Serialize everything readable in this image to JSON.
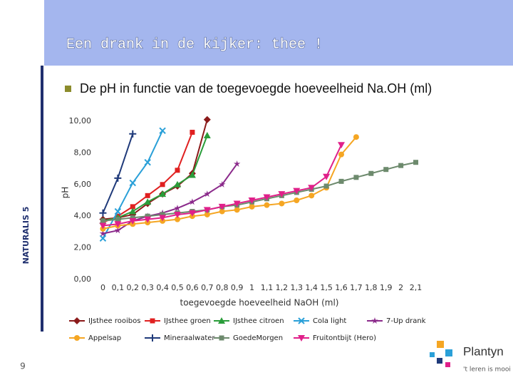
{
  "slide": {
    "title": "Een drank in de kijker: thee !",
    "bullet": "De pH in functie van de toegevoegde hoeveelheid Na.OH (ml)",
    "side_label": "NATURALIS 5",
    "page_number": "9",
    "logo": {
      "name": "Plantyn",
      "tagline": "'t leren is mooi"
    }
  },
  "chart_data": {
    "type": "line",
    "x_label": "toegevoegde hoeveelheid NaOH (ml)",
    "y_label": "pH",
    "x": [
      0,
      0.1,
      0.2,
      0.3,
      0.4,
      0.5,
      0.6,
      0.7,
      0.8,
      0.9,
      1.0,
      1.1,
      1.2,
      1.3,
      1.4,
      1.5,
      1.6,
      1.7,
      1.8,
      1.9,
      2.0,
      2.1
    ],
    "xlim": [
      -0.05,
      2.15
    ],
    "xticks": [
      0,
      {
        "value": 0.1,
        "label": "0,1"
      },
      {
        "value": 0.2,
        "label": "0,2"
      },
      {
        "value": 0.3,
        "label": "0,3"
      },
      {
        "value": 0.4,
        "label": "0,4"
      },
      {
        "value": 0.5,
        "label": "0,5"
      },
      {
        "value": 0.6,
        "label": "0,6"
      },
      {
        "value": 0.7,
        "label": "0,7"
      },
      {
        "value": 0.8,
        "label": "0,8"
      },
      {
        "value": 0.9,
        "label": "0,9"
      },
      1,
      {
        "value": 1.1,
        "label": "1,1"
      },
      {
        "value": 1.2,
        "label": "1,2"
      },
      {
        "value": 1.3,
        "label": "1,3"
      },
      {
        "value": 1.4,
        "label": "1,4"
      },
      {
        "value": 1.5,
        "label": "1,5"
      },
      {
        "value": 1.6,
        "label": "1,6"
      },
      {
        "value": 1.7,
        "label": "1,7"
      },
      {
        "value": 1.8,
        "label": "1,8"
      },
      {
        "value": 1.9,
        "label": "1,9"
      },
      2,
      {
        "value": 2.1,
        "label": "2,1"
      }
    ],
    "ylim": [
      0,
      10.5
    ],
    "yticks": [
      {
        "value": 0,
        "label": "0,00"
      },
      {
        "value": 2,
        "label": "2,00"
      },
      {
        "value": 4,
        "label": "4,00"
      },
      {
        "value": 6,
        "label": "6,00"
      },
      {
        "value": 8,
        "label": "8,00"
      },
      {
        "value": 10,
        "label": "10,00"
      }
    ],
    "grid": false,
    "series": [
      {
        "name": "IJsthee rooibos",
        "color": "#8b1a1a",
        "marker": "diamond",
        "values": [
          3.8,
          3.9,
          4.1,
          4.8,
          5.4,
          5.9,
          6.7,
          10.1,
          null,
          null,
          null,
          null,
          null,
          null,
          null,
          null,
          null,
          null,
          null,
          null,
          null,
          null
        ]
      },
      {
        "name": "IJsthee groen",
        "color": "#e02020",
        "marker": "square",
        "values": [
          3.6,
          4.0,
          4.6,
          5.3,
          6.0,
          6.9,
          9.3,
          null,
          null,
          null,
          null,
          null,
          null,
          null,
          null,
          null,
          null,
          null,
          null,
          null,
          null,
          null
        ]
      },
      {
        "name": "IJsthee citroen",
        "color": "#2a9d3a",
        "marker": "triangle",
        "values": [
          3.7,
          3.9,
          4.3,
          4.9,
          5.4,
          6.0,
          6.6,
          9.1,
          null,
          null,
          null,
          null,
          null,
          null,
          null,
          null,
          null,
          null,
          null,
          null,
          null,
          null
        ]
      },
      {
        "name": "Cola light",
        "color": "#2aa0d8",
        "marker": "x",
        "values": [
          2.6,
          4.3,
          6.1,
          7.4,
          9.4,
          null,
          null,
          null,
          null,
          null,
          null,
          null,
          null,
          null,
          null,
          null,
          null,
          null,
          null,
          null,
          null,
          null
        ]
      },
      {
        "name": "7-Up drank",
        "color": "#8b2a8b",
        "marker": "star",
        "values": [
          2.9,
          3.1,
          3.7,
          4.0,
          4.2,
          4.5,
          4.9,
          5.4,
          6.0,
          7.3,
          null,
          null,
          null,
          null,
          null,
          null,
          null,
          null,
          null,
          null,
          null,
          null
        ]
      },
      {
        "name": "Appelsap",
        "color": "#f5a623",
        "marker": "circle",
        "values": [
          3.2,
          3.4,
          3.5,
          3.6,
          3.7,
          3.8,
          4.0,
          4.1,
          4.3,
          4.4,
          4.6,
          4.7,
          4.8,
          5.0,
          5.3,
          5.8,
          7.9,
          9.0,
          null,
          null,
          null,
          null
        ]
      },
      {
        "name": "Mineraalwater",
        "color": "#1f3a7a",
        "marker": "plus",
        "values": [
          4.2,
          6.4,
          9.2,
          null,
          null,
          null,
          null,
          null,
          null,
          null,
          null,
          null,
          null,
          null,
          null,
          null,
          null,
          null,
          null,
          null,
          null,
          null
        ]
      },
      {
        "name": "GoedeMorgen",
        "color": "#6d8a6d",
        "marker": "square",
        "values": [
          3.7,
          3.8,
          3.9,
          4.0,
          4.1,
          4.2,
          4.3,
          4.4,
          4.6,
          4.7,
          4.9,
          5.1,
          5.3,
          5.5,
          5.7,
          5.9,
          6.2,
          6.45,
          6.7,
          6.95,
          7.2,
          7.4
        ]
      },
      {
        "name": "Fruitontbijt (Hero)",
        "color": "#e0208a",
        "marker": "triangle-down",
        "values": [
          3.4,
          3.5,
          3.7,
          3.8,
          3.9,
          4.1,
          4.2,
          4.4,
          4.6,
          4.8,
          5.0,
          5.2,
          5.4,
          5.6,
          5.8,
          6.5,
          8.5,
          null,
          null,
          null,
          null,
          null
        ]
      }
    ]
  }
}
